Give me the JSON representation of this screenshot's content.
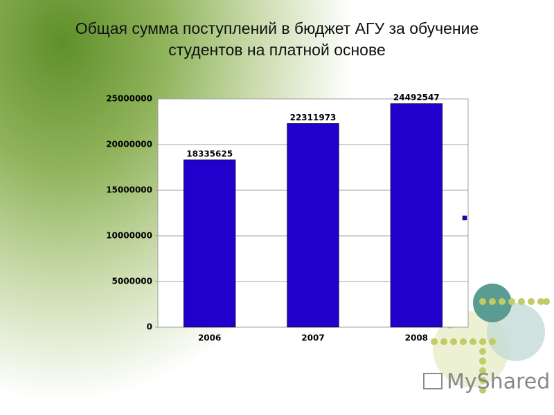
{
  "chart_data": {
    "type": "bar",
    "title": "Общая сумма поступлений в бюджет АГУ за обучение студентов на платной основе",
    "categories": [
      "2006",
      "2007",
      "2008"
    ],
    "values": [
      18335625,
      22311973,
      24492547
    ],
    "color": "#2200cc",
    "ylim": [
      0,
      25000000
    ],
    "yticks": [
      0,
      5000000,
      10000000,
      15000000,
      20000000,
      25000000
    ],
    "grid": true
  },
  "watermark": "MyShared"
}
